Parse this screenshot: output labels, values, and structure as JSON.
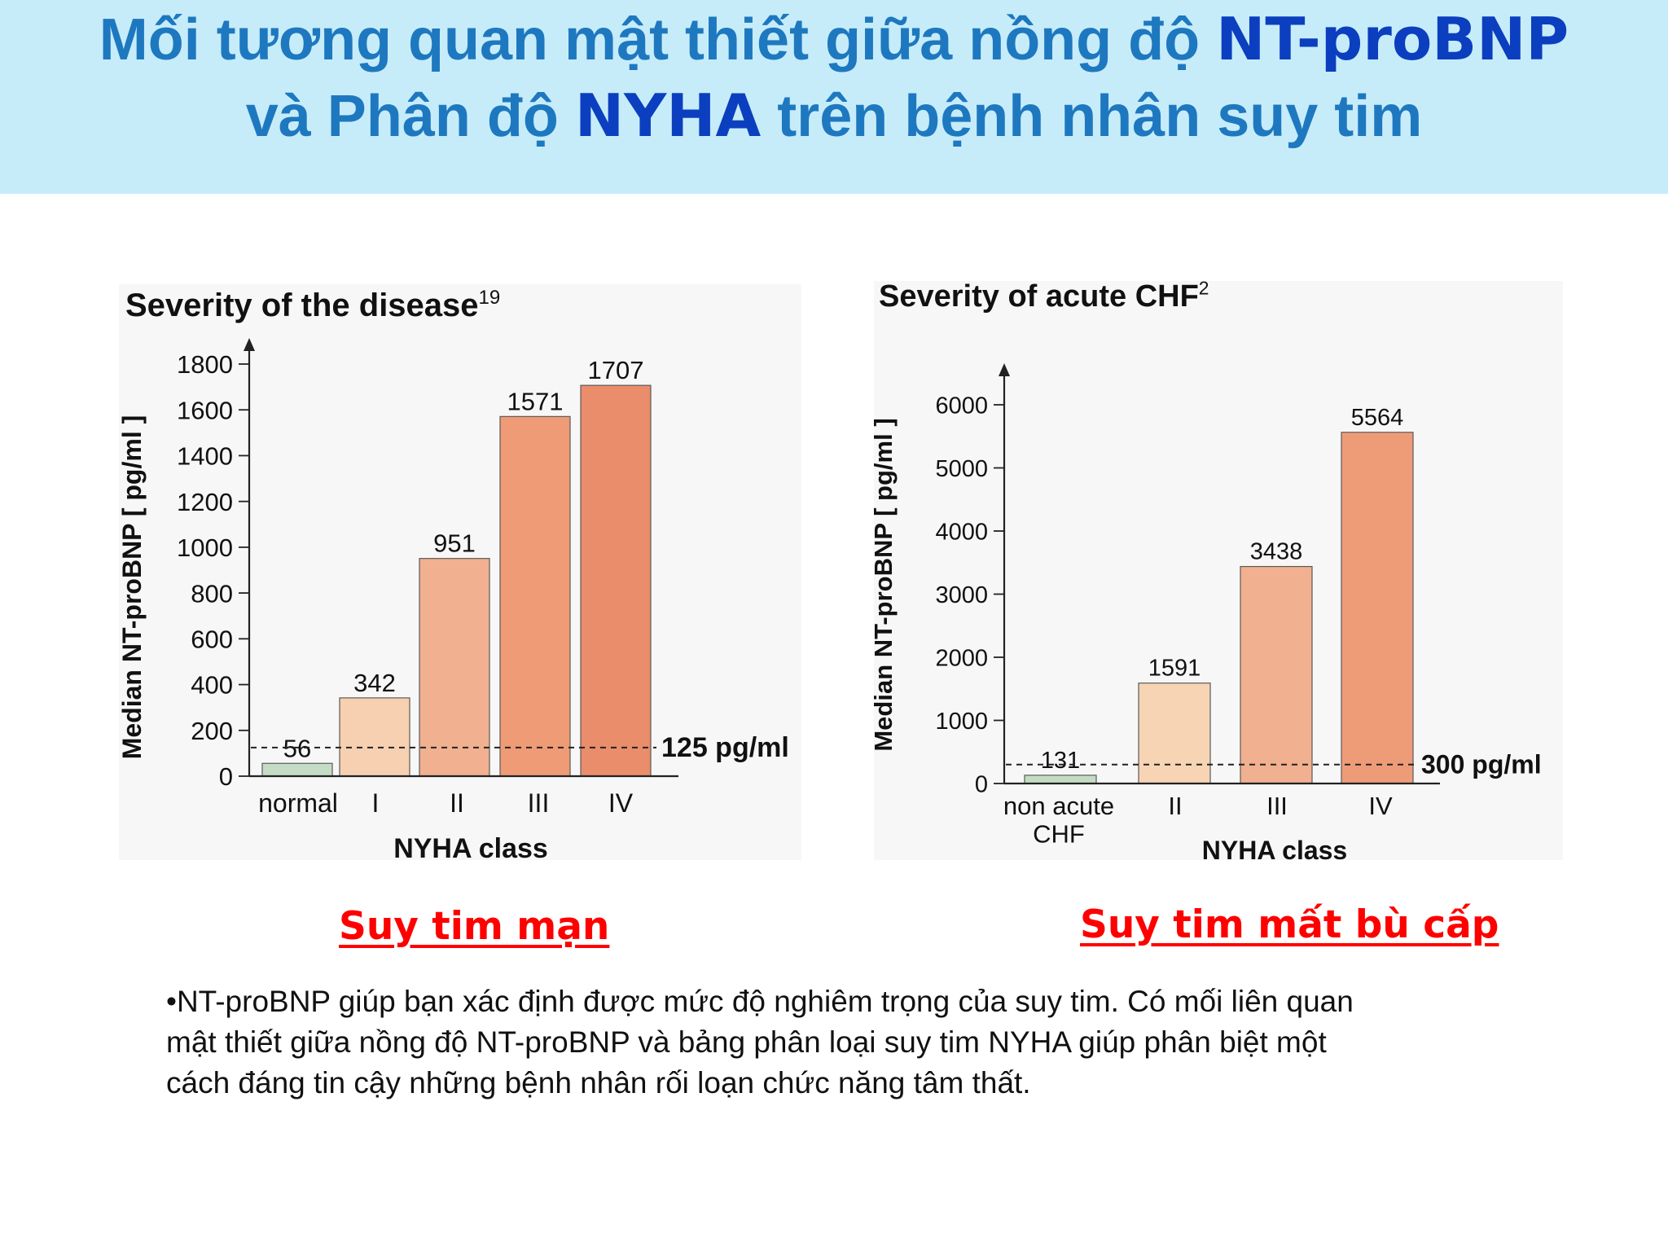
{
  "slide": {
    "title": {
      "line1_text": "Mối tương quan mật thiết giữa nồng độ ",
      "line1_highlight": "NT-proBNP",
      "line2_text_before": "và Phân độ ",
      "line2_highlight": "NYHA",
      "line2_text_after": " trên bệnh nhân suy tim"
    },
    "caption_left": "Suy tim mạn",
    "caption_right": "Suy tim mất bù cấp",
    "bullet": "•NT-proBNP giúp bạn xác định được mức độ nghiêm trọng của suy tim. Có mối liên quan\nmật thiết giữa nồng độ NT-proBNP và bảng phân loại suy tim NYHA giúp phân biệt một\ncách đáng tin cậy những bệnh nhân rối loạn chức năng tâm thất."
  },
  "chart_data": [
    {
      "type": "bar",
      "title": "Severity of the disease",
      "title_superscript": "19",
      "xlabel": "NYHA class",
      "ylabel": "Median NT-proBNP [ pg/ml ]",
      "categories": [
        "normal",
        "I",
        "II",
        "III",
        "IV"
      ],
      "values": [
        56,
        342,
        951,
        1571,
        1707
      ],
      "value_labels": [
        "56",
        "342",
        "951",
        "1571",
        "1707"
      ],
      "bar_colors": [
        "#c4dcc4",
        "#f6d0b0",
        "#f1b08f",
        "#ee9b76",
        "#e98d6b"
      ],
      "ylim": [
        0,
        1800
      ],
      "yticks": [
        0,
        200,
        400,
        600,
        800,
        1000,
        1200,
        1400,
        1600,
        1800
      ],
      "threshold": {
        "value": 125,
        "label": "125 pg/ml"
      },
      "grid": false,
      "legend": "none"
    },
    {
      "type": "bar",
      "title": "Severity of acute CHF",
      "title_superscript": "2",
      "xlabel": "NYHA class",
      "ylabel": "Median NT-proBNP [ pg/ml ]",
      "categories": [
        "non acute\nCHF",
        "II",
        "III",
        "IV"
      ],
      "values": [
        131,
        1591,
        3438,
        5564
      ],
      "value_labels": [
        "131",
        "1591",
        "3438",
        "5564"
      ],
      "bar_colors": [
        "#c4dcc4",
        "#f6d4b4",
        "#f1b08f",
        "#ee9c78"
      ],
      "ylim": [
        0,
        6000
      ],
      "yticks": [
        0,
        1000,
        2000,
        3000,
        4000,
        5000,
        6000
      ],
      "threshold": {
        "value": 300,
        "label": "300 pg/ml"
      },
      "grid": false,
      "legend": "none"
    }
  ]
}
